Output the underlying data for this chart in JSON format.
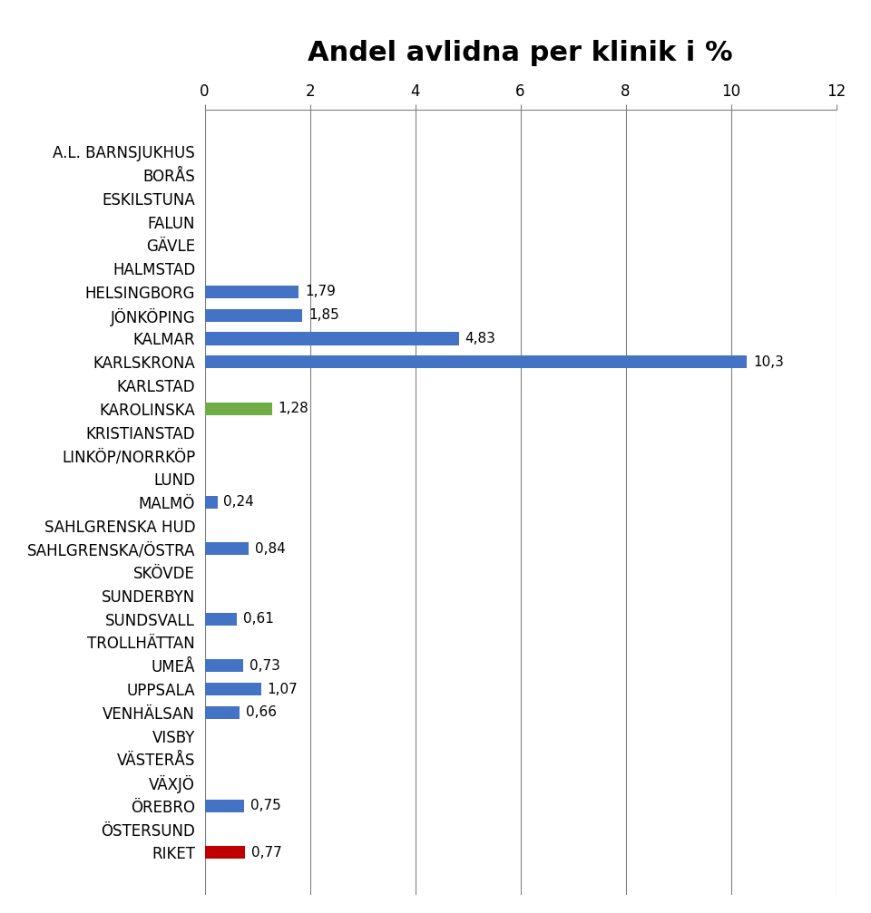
{
  "title": "Andel avlidna per klinik i %",
  "categories": [
    "A.L. BARNSJUKHUS",
    "BORÅS",
    "ESKILSTUNA",
    "FALUN",
    "GÄVLE",
    "HALMSTAD",
    "HELSINGBORG",
    "JÖNKÖPING",
    "KALMAR",
    "KARLSKRONA",
    "KARLSTAD",
    "KAROLINSKA",
    "KRISTIANSTAD",
    "LINKÖP/NORRKÖP",
    "LUND",
    "MALMÖ",
    "SAHLGRENSKA HUD",
    "SAHLGRENSKA/ÖSTRA",
    "SKÖVDE",
    "SUNDERBYN",
    "SUNDSVALL",
    "TROLLHÄTTAN",
    "UMEÅ",
    "UPPSALA",
    "VENHÄLSAN",
    "VISBY",
    "VÄSTERÅS",
    "VÄXJÖ",
    "ÖREBRO",
    "ÖSTERSUND",
    "RIKET"
  ],
  "values": [
    0,
    0,
    0,
    0,
    0,
    0,
    1.79,
    1.85,
    4.83,
    10.3,
    0,
    1.28,
    0,
    0,
    0,
    0.24,
    0,
    0.84,
    0,
    0,
    0.61,
    0,
    0.73,
    1.07,
    0.66,
    0,
    0,
    0,
    0.75,
    0,
    0.77
  ],
  "bar_colors": [
    "#4472c4",
    "#4472c4",
    "#4472c4",
    "#4472c4",
    "#4472c4",
    "#4472c4",
    "#4472c4",
    "#4472c4",
    "#4472c4",
    "#4472c4",
    "#4472c4",
    "#70ad47",
    "#4472c4",
    "#4472c4",
    "#4472c4",
    "#4472c4",
    "#4472c4",
    "#4472c4",
    "#4472c4",
    "#4472c4",
    "#4472c4",
    "#4472c4",
    "#4472c4",
    "#4472c4",
    "#4472c4",
    "#4472c4",
    "#4472c4",
    "#4472c4",
    "#4472c4",
    "#4472c4",
    "#c00000"
  ],
  "labels": [
    "",
    "",
    "",
    "",
    "",
    "",
    "1,79",
    "1,85",
    "4,83",
    "10,3",
    "",
    "1,28",
    "",
    "",
    "",
    "0,24",
    "",
    "0,84",
    "",
    "",
    "0,61",
    "",
    "0,73",
    "1,07",
    "0,66",
    "",
    "",
    "",
    "0,75",
    "",
    "0,77"
  ],
  "xlim": [
    0,
    12
  ],
  "xticks": [
    0,
    2,
    4,
    6,
    8,
    10,
    12
  ],
  "title_fontsize": 22,
  "label_fontsize": 11,
  "tick_fontsize": 12,
  "ylabel_fontsize": 12,
  "background_color": "#ffffff",
  "grid_color": "#808080"
}
